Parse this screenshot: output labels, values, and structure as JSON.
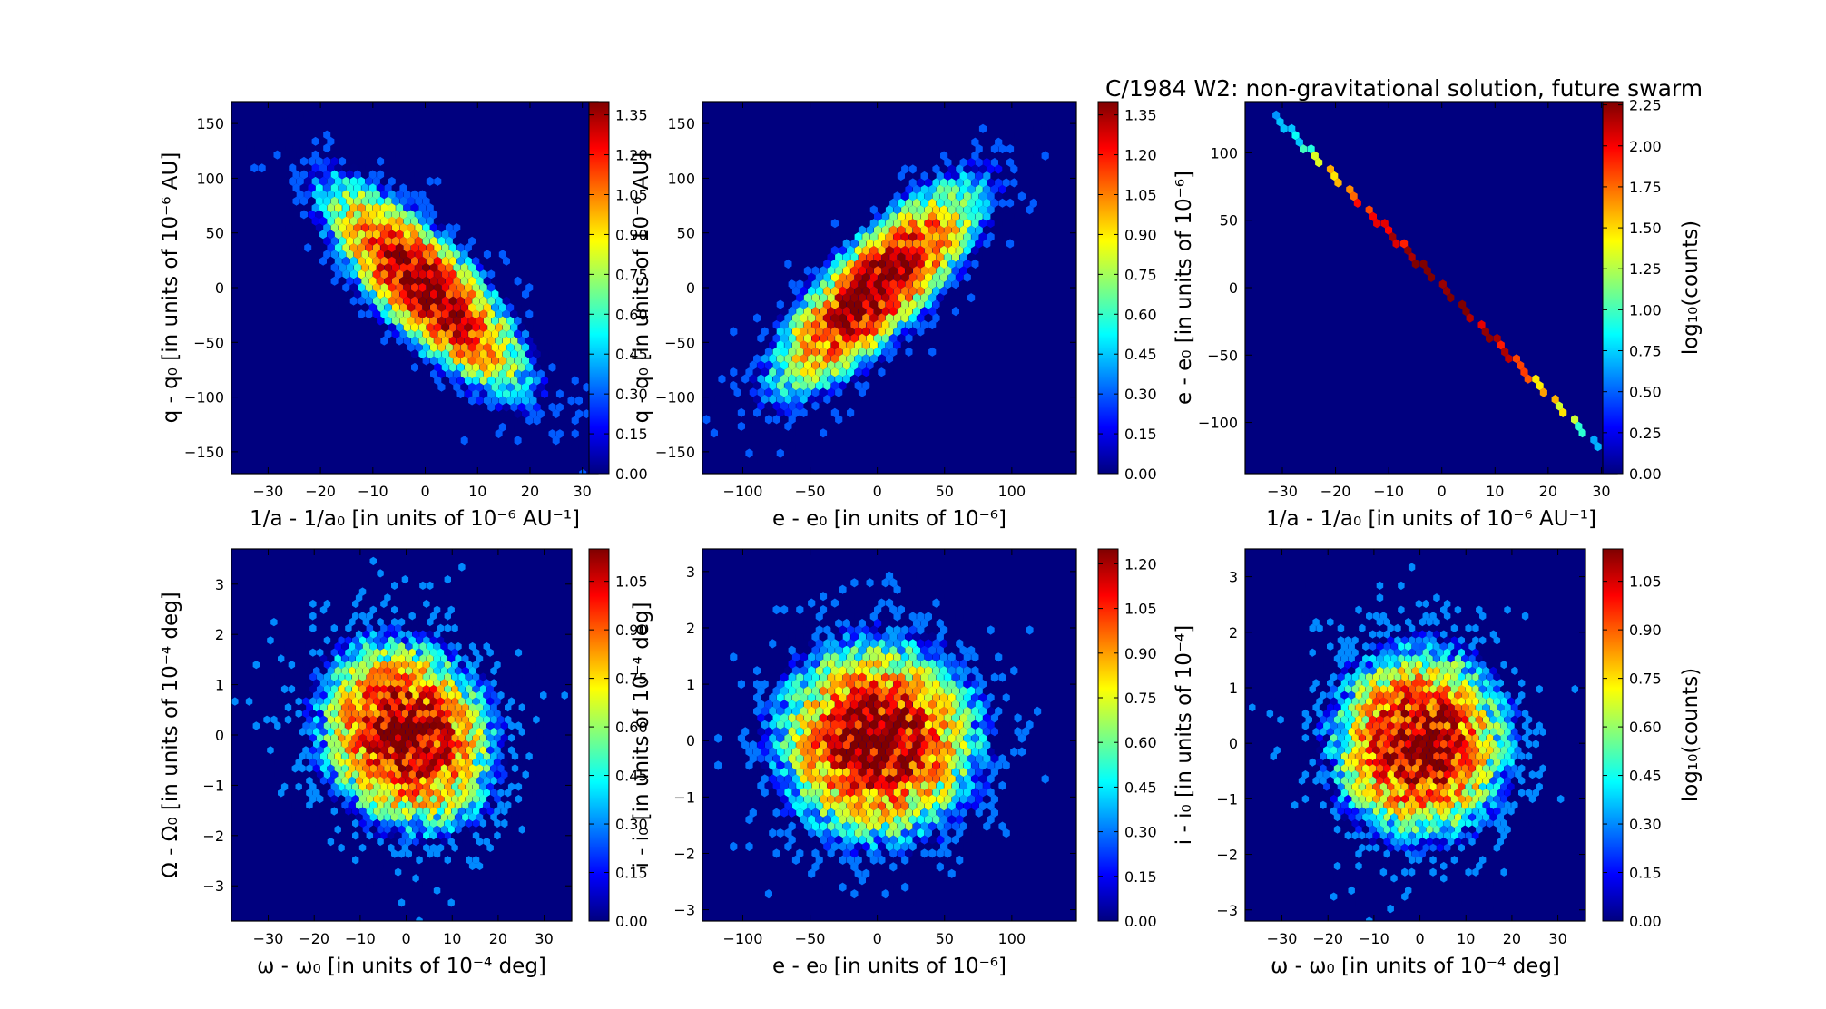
{
  "figure_title": "C/1984 W2:  non-gravitational solution, future swarm",
  "colors": {
    "jet": [
      "#00007f",
      "#0000ff",
      "#007fff",
      "#00ffff",
      "#7fff7f",
      "#ffff00",
      "#ff7f00",
      "#ff0000",
      "#7f0000"
    ],
    "background": "#00007f"
  },
  "chart_data": [
    {
      "type": "heatmap",
      "subtype": "hexbin",
      "xlabel": "1/a - 1/a₀ [in units of 10⁻⁶ AU⁻¹]",
      "ylabel": "q - q₀ [in units of 10⁻⁶ AU]",
      "xlim": [
        -37,
        33
      ],
      "ylim": [
        -170,
        170
      ],
      "xticks": [
        -30,
        -20,
        -10,
        0,
        10,
        20,
        30
      ],
      "yticks": [
        -150,
        -100,
        -50,
        0,
        50,
        100,
        150
      ],
      "colorbar": {
        "label": "",
        "range": [
          0,
          1.4
        ],
        "ticks": [
          "0.00",
          "0.15",
          "0.30",
          "0.45",
          "0.60",
          "0.75",
          "0.90",
          "1.05",
          "1.20",
          "1.35"
        ]
      },
      "distribution": {
        "center": [
          0,
          0
        ],
        "sd": [
          9.5,
          47
        ],
        "corr": -0.8,
        "peak": 1.4
      }
    },
    {
      "type": "heatmap",
      "subtype": "hexbin",
      "xlabel": "e - e₀ [in units of 10⁻⁶]",
      "ylabel": "q - q₀ [in units of 10⁻⁶ AU]",
      "xlim": [
        -130,
        148
      ],
      "ylim": [
        -170,
        170
      ],
      "xticks": [
        -100,
        -50,
        0,
        50,
        100
      ],
      "yticks": [
        -150,
        -100,
        -50,
        0,
        50,
        100,
        150
      ],
      "colorbar": {
        "label": "",
        "range": [
          0,
          1.4
        ],
        "ticks": [
          "0.00",
          "0.15",
          "0.30",
          "0.45",
          "0.60",
          "0.75",
          "0.90",
          "1.05",
          "1.20",
          "1.35"
        ]
      },
      "distribution": {
        "center": [
          0,
          0
        ],
        "sd": [
          38,
          47
        ],
        "corr": 0.8,
        "peak": 1.4
      }
    },
    {
      "type": "heatmap",
      "subtype": "hexbin",
      "xlabel": "1/a - 1/a₀ [in units of 10⁻⁶ AU⁻¹]",
      "ylabel": "e - e₀ [in units of 10⁻⁶]",
      "xlim": [
        -37,
        33
      ],
      "ylim": [
        -138,
        138
      ],
      "xticks": [
        -30,
        -20,
        -10,
        0,
        10,
        20,
        30
      ],
      "yticks": [
        -100,
        -50,
        0,
        50,
        100
      ],
      "colorbar": {
        "label": "log₁₀(counts)",
        "range": [
          0,
          2.27
        ],
        "ticks": [
          "0.00",
          "0.25",
          "0.50",
          "0.75",
          "1.00",
          "1.25",
          "1.50",
          "1.75",
          "2.00",
          "2.25"
        ]
      },
      "distribution": {
        "line": {
          "from": [
            -32,
            130
          ],
          "to": [
            30,
            -120
          ]
        },
        "sd_x": 11,
        "peak": 2.27
      }
    },
    {
      "type": "heatmap",
      "subtype": "hexbin",
      "xlabel": "ω - ω₀ [in units of 10⁻⁴ deg]",
      "ylabel": "Ω - Ω₀ [in units of 10⁻⁴ deg]",
      "xlim": [
        -38,
        36
      ],
      "ylim": [
        -3.7,
        3.7
      ],
      "xticks": [
        -30,
        -20,
        -10,
        0,
        10,
        20,
        30
      ],
      "yticks": [
        -3,
        -2,
        -1,
        0,
        1,
        2,
        3
      ],
      "colorbar": {
        "label": "",
        "range": [
          0,
          1.15
        ],
        "ticks": [
          "0.00",
          "0.15",
          "0.30",
          "0.45",
          "0.60",
          "0.75",
          "0.90",
          "1.05"
        ]
      },
      "distribution": {
        "center": [
          0,
          0
        ],
        "sd": [
          10,
          1.0
        ],
        "corr": -0.15,
        "peak": 1.15
      }
    },
    {
      "type": "heatmap",
      "subtype": "hexbin",
      "xlabel": "e - e₀ [in units of 10⁻⁶]",
      "ylabel": "i - i₀ [in units of 10⁻⁴ deg]",
      "xlim": [
        -130,
        148
      ],
      "ylim": [
        -3.2,
        3.4
      ],
      "xticks": [
        -100,
        -50,
        0,
        50,
        100
      ],
      "yticks": [
        -3,
        -2,
        -1,
        0,
        1,
        2,
        3
      ],
      "colorbar": {
        "label": "",
        "range": [
          0,
          1.25
        ],
        "ticks": [
          "0.00",
          "0.15",
          "0.30",
          "0.45",
          "0.60",
          "0.75",
          "0.90",
          "1.05",
          "1.20"
        ]
      },
      "distribution": {
        "center": [
          0,
          0
        ],
        "sd": [
          38,
          0.9
        ],
        "corr": 0.0,
        "peak": 1.25
      }
    },
    {
      "type": "heatmap",
      "subtype": "hexbin",
      "xlabel": "ω - ω₀ [in units of 10⁻⁴ deg]",
      "ylabel": "i - i₀ [in units of 10⁻⁴]",
      "xlim": [
        -38,
        36
      ],
      "ylim": [
        -3.2,
        3.5
      ],
      "xticks": [
        -30,
        -20,
        -10,
        0,
        10,
        20,
        30
      ],
      "yticks": [
        -3,
        -2,
        -1,
        0,
        1,
        2,
        3
      ],
      "colorbar": {
        "label": "log₁₀(counts)",
        "range": [
          0,
          1.15
        ],
        "ticks": [
          "0.00",
          "0.15",
          "0.30",
          "0.45",
          "0.60",
          "0.75",
          "0.90",
          "1.05"
        ]
      },
      "distribution": {
        "center": [
          0,
          0
        ],
        "sd": [
          10,
          0.9
        ],
        "corr": 0.0,
        "peak": 1.15
      }
    }
  ]
}
